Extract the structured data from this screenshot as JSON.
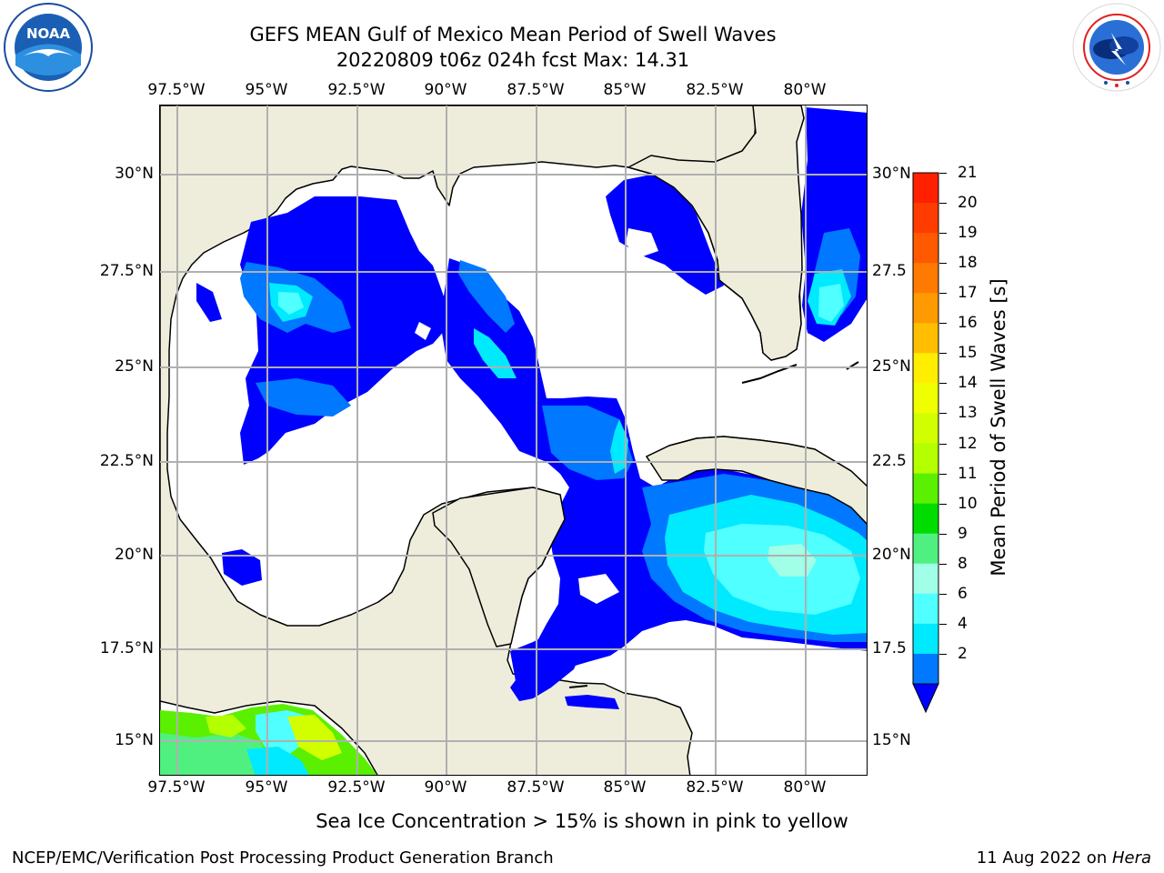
{
  "header": {
    "title_line1": "GEFS MEAN Gulf of Mexico Mean Period of Swell Waves",
    "title_line2": "20220809 t06z 024h fcst   Max: 14.31"
  },
  "logos": {
    "left": {
      "name": "noaa-logo",
      "text": "NOAA",
      "ring_text": "NATIONAL OCEANIC AND ATMOSPHERIC ADMINISTRATION · U.S. DEPARTMENT OF COMMERCE"
    },
    "right": {
      "name": "nws-logo",
      "ring_text": "NATIONAL WEATHER SERVICE"
    }
  },
  "map": {
    "lon_ticks": [
      "97.5°W",
      "95°W",
      "92.5°W",
      "90°W",
      "87.5°W",
      "85°W",
      "82.5°W",
      "80°W"
    ],
    "lat_ticks_left": [
      "30°N",
      "27.5°N",
      "25°N",
      "22.5°N",
      "20°N",
      "17.5°N",
      "15°N"
    ],
    "lat_ticks_right": [
      "30°N",
      "27.5",
      "25°N",
      "22.5",
      "20°N",
      "17.5",
      "15°N"
    ],
    "land_color": "#eeeddc",
    "water_color": "#ffffff",
    "grid_color": "#b0b0b0"
  },
  "colorbar": {
    "label": "Mean Period of Swell Waves [s]",
    "ticks": [
      "21",
      "20",
      "19",
      "18",
      "17",
      "16",
      "15",
      "14",
      "13",
      "12",
      "11",
      "10",
      "9",
      "8",
      "6",
      "4",
      "2"
    ],
    "colors": [
      "#ff2000",
      "#ff3c00",
      "#ff5a00",
      "#ff7a00",
      "#ff9a00",
      "#ffbf00",
      "#ffee00",
      "#f0ff00",
      "#d2ff00",
      "#b4ff00",
      "#5af000",
      "#00dc00",
      "#50f080",
      "#a0ffe6",
      "#50ffff",
      "#00eaff",
      "#0078ff"
    ],
    "extend_color": "#0000ff"
  },
  "notes": {
    "sea_ice": "Sea Ice Concentration > 15% is shown in pink to yellow"
  },
  "footer": {
    "left": "NCEP/EMC/Verification Post Processing Product Generation Branch",
    "right_date": "11 Aug 2022 on ",
    "right_host": "Hera"
  }
}
